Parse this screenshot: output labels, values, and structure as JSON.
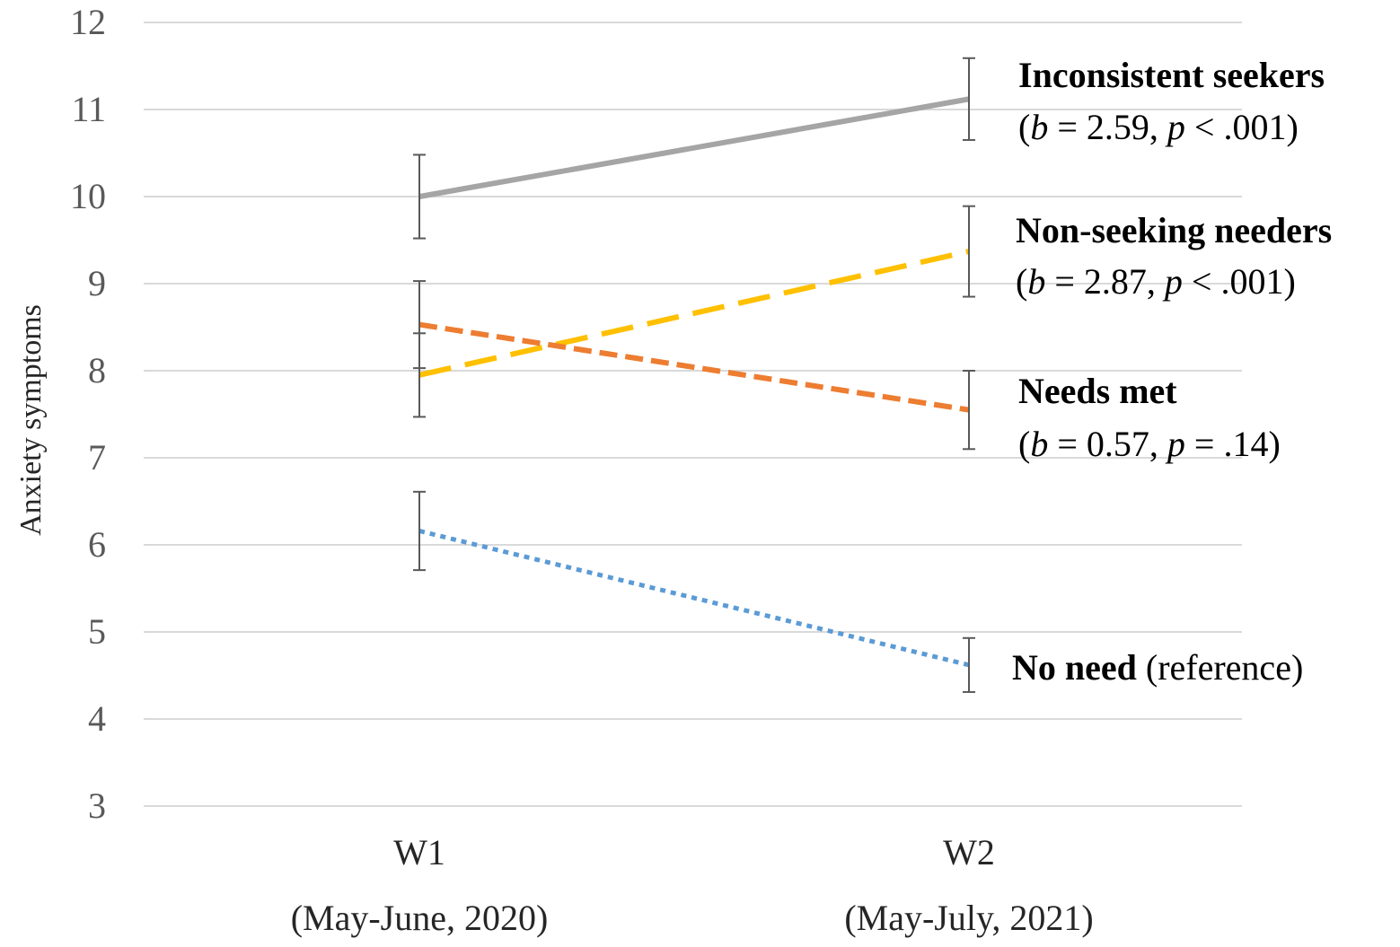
{
  "chart_data": {
    "type": "line",
    "ylabel": "Anxiety symptoms",
    "xlabel": "",
    "ylim": [
      3,
      12
    ],
    "yticks": [
      "3",
      "4",
      "5",
      "6",
      "7",
      "8",
      "9",
      "10",
      "11",
      "12"
    ],
    "grid": true,
    "categories": [
      {
        "label": "W1",
        "sublabel": "(May-June, 2020)"
      },
      {
        "label": "W2",
        "sublabel": "(May-July, 2021)"
      }
    ],
    "series": [
      {
        "name": "Inconsistent seekers",
        "values": [
          10.0,
          11.12
        ],
        "error": [
          0.48,
          0.47
        ],
        "color": "#a5a5a5",
        "dash": "solid",
        "annotation": {
          "name": "Inconsistent seekers",
          "b_label": "b",
          "b_value": " = 2.59, ",
          "p_label": "p",
          "p_value": " < .001)",
          "open": "("
        }
      },
      {
        "name": "Non-seeking needers",
        "values": [
          7.95,
          9.37
        ],
        "error": [
          0.48,
          0.52
        ],
        "color": "#ffc000",
        "dash": "long-dash",
        "annotation": {
          "name": "Non-seeking needers",
          "b_label": "b",
          "b_value": " = 2.87, ",
          "p_label": "p",
          "p_value": " < .001)",
          "open": "("
        }
      },
      {
        "name": "Needs met",
        "values": [
          8.53,
          7.55
        ],
        "error": [
          0.5,
          0.45
        ],
        "color": "#ed7d31",
        "dash": "dash",
        "annotation": {
          "name": "Needs met",
          "b_label": "b",
          "b_value": " = 0.57, ",
          "p_label": "p",
          "p_value": " = .14)",
          "open": "("
        }
      },
      {
        "name": "No need",
        "values": [
          6.16,
          4.62
        ],
        "error": [
          0.45,
          0.31
        ],
        "color": "#5b9bd5",
        "dash": "dot",
        "annotation": {
          "name": "No need",
          "suffix": " (reference)"
        }
      }
    ]
  }
}
